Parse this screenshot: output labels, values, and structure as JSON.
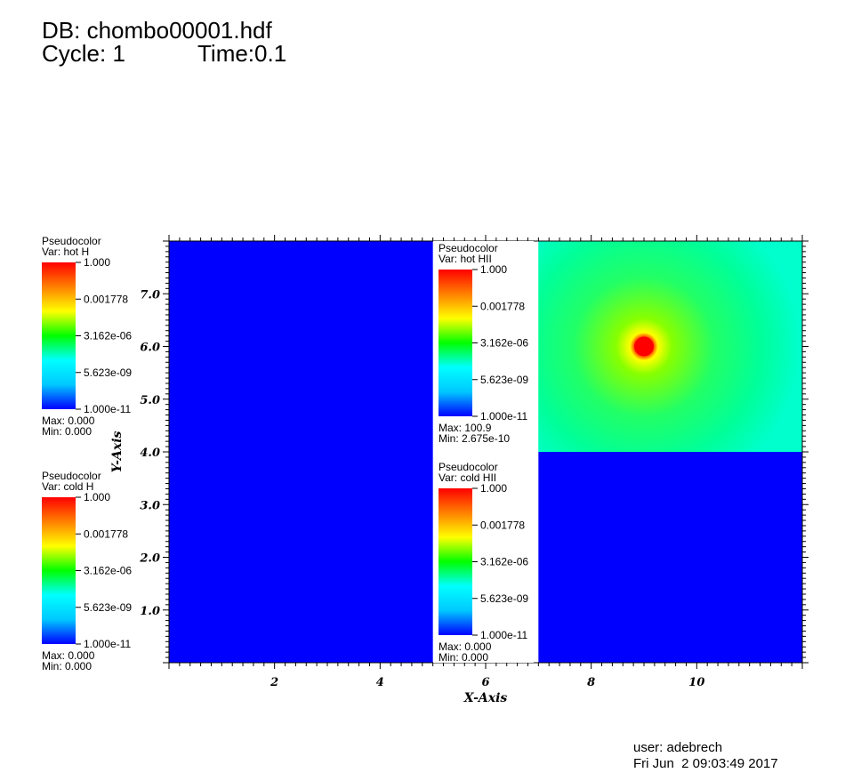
{
  "header": {
    "db_label": "DB: chombo00001.hdf",
    "cycle_label": "Cycle: 1",
    "time_label": "Time:0.1"
  },
  "footer": {
    "user": "user: adebrech",
    "date": "Fri Jun  2 09:03:49 2017"
  },
  "chart_data": {
    "type": "heatmap",
    "xlabel": "X-Axis",
    "ylabel": "Y-Axis",
    "xlim": [
      0,
      12
    ],
    "ylim": [
      0,
      8
    ],
    "x_ticks": [
      "2",
      "4",
      "6",
      "8",
      "10"
    ],
    "y_ticks": [
      "1.0",
      "2.0",
      "3.0",
      "4.0",
      "5.0",
      "6.0",
      "7.0"
    ],
    "x_tick_values": [
      2,
      4,
      6,
      8,
      10
    ],
    "y_tick_values": [
      1,
      2,
      3,
      4,
      5,
      6,
      7
    ],
    "regions": [
      {
        "name": "hot H",
        "x": [
          0,
          5
        ],
        "y": [
          0,
          8
        ],
        "color": "#0000ff"
      },
      {
        "name": "cold HII",
        "x": [
          7,
          12
        ],
        "y": [
          0,
          4
        ],
        "color": "#0000ff"
      },
      {
        "name": "hot HII",
        "x": [
          7,
          12
        ],
        "y": [
          4,
          8
        ],
        "color": "#00ff88",
        "hotspot": {
          "x": 9,
          "y": 6
        }
      }
    ],
    "colormap": [
      "#0000ff",
      "#00c8ff",
      "#00ffff",
      "#00ff00",
      "#ffff00",
      "#ff8000",
      "#ff0000"
    ],
    "legends": [
      {
        "title": "Pseudocolor",
        "var": "Var: hot H",
        "ticks": [
          "1.000",
          "0.001778",
          "3.162e-06",
          "5.623e-09",
          "1.000e-11"
        ],
        "max": "Max:  0.000",
        "min": "Min:  0.000"
      },
      {
        "title": "Pseudocolor",
        "var": "Var: cold H",
        "ticks": [
          "1.000",
          "0.001778",
          "3.162e-06",
          "5.623e-09",
          "1.000e-11"
        ],
        "max": "Max:  0.000",
        "min": "Min:  0.000"
      },
      {
        "title": "Pseudocolor",
        "var": "Var: hot HII",
        "ticks": [
          "1.000",
          "0.001778",
          "3.162e-06",
          "5.623e-09",
          "1.000e-11"
        ],
        "max": "Max:  100.9",
        "min": "Min:  2.675e-10"
      },
      {
        "title": "Pseudocolor",
        "var": "Var: cold HII",
        "ticks": [
          "1.000",
          "0.001778",
          "3.162e-06",
          "5.623e-09",
          "1.000e-11"
        ],
        "max": "Max:  0.000",
        "min": "Min:  0.000"
      }
    ]
  }
}
